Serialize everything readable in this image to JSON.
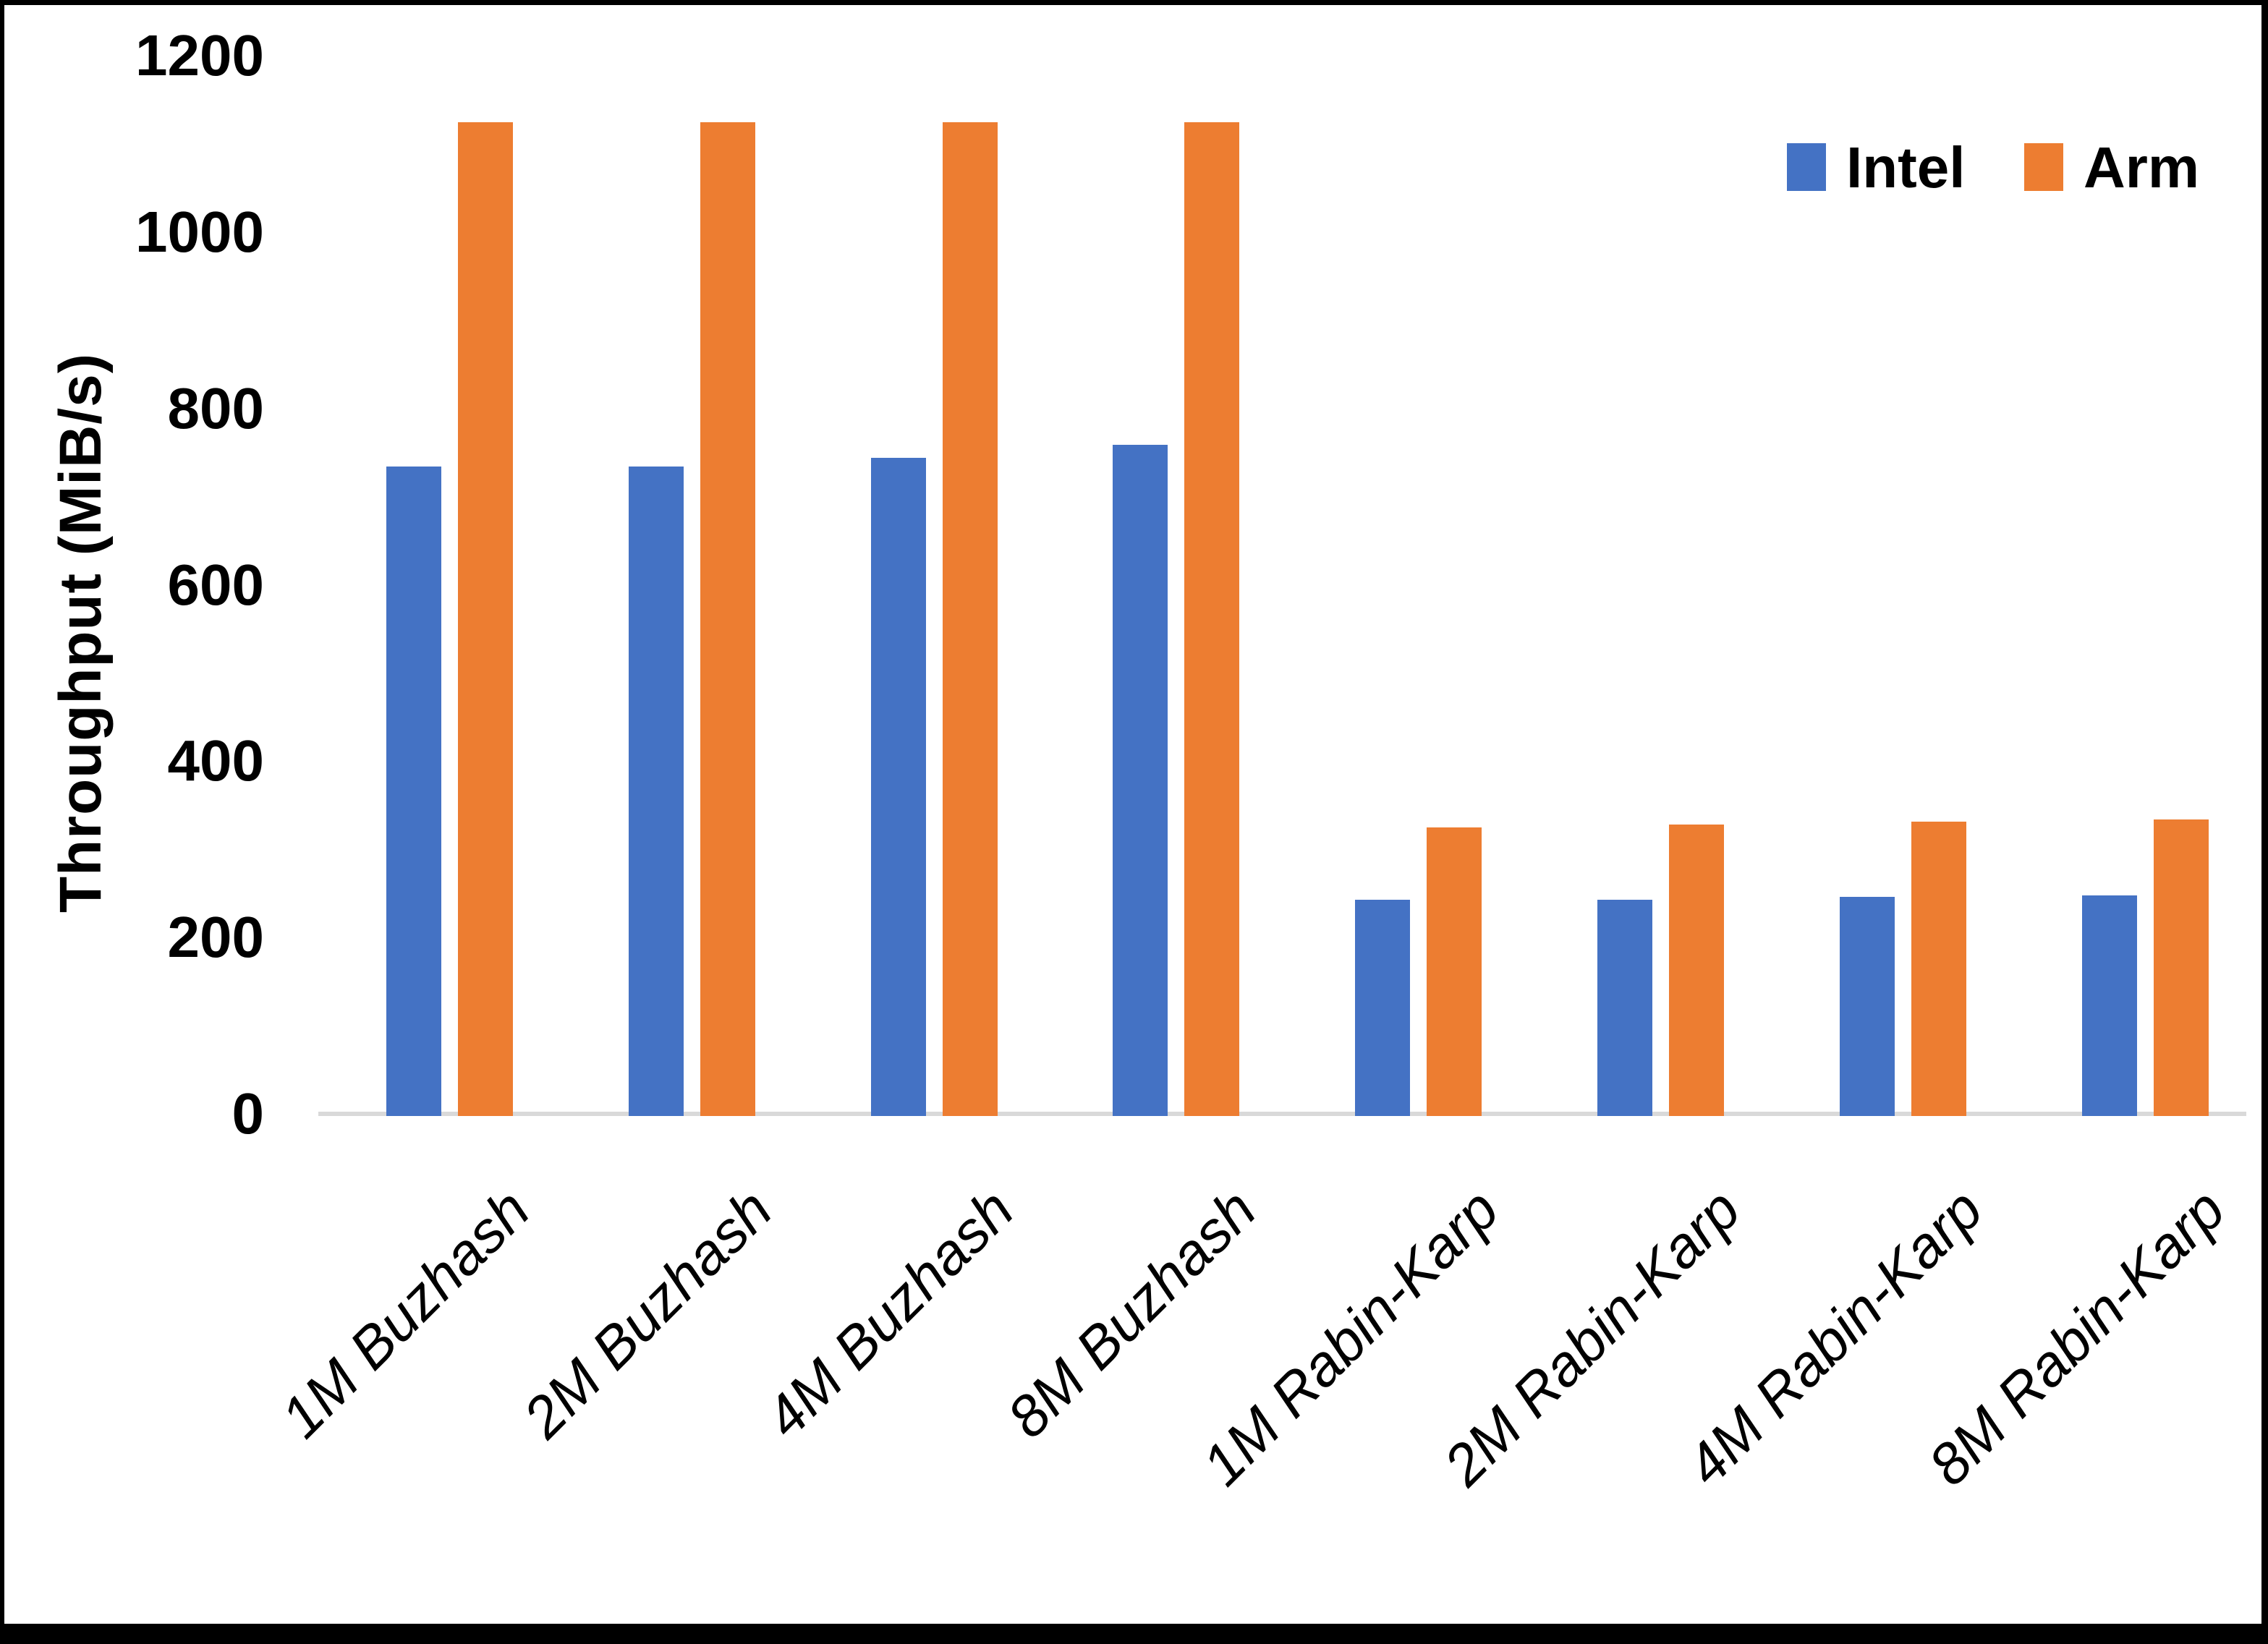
{
  "y_axis_title": "Throughput (MiB/s)",
  "legend": {
    "items": [
      {
        "label": "Intel",
        "color": "#4472C4"
      },
      {
        "label": "Arm",
        "color": "#ED7D31"
      }
    ]
  },
  "chart_data": {
    "type": "bar",
    "title": "",
    "xlabel": "",
    "ylabel": "Throughput (MiB/s)",
    "ylim": [
      0,
      1200
    ],
    "ytick_interval": 200,
    "ytick_labels": [
      "0",
      "200",
      "400",
      "600",
      "800",
      "1000",
      "1200"
    ],
    "grid": false,
    "legend_position": "top-right",
    "axis_line_color": "#d9d9d9",
    "categories": [
      "1M Buzhash",
      "2M Buzhash",
      "4M Buzhash",
      "8M Buzhash",
      "1M Rabin-Karp",
      "2M Rabin-Karp",
      "4M Rabin-Karp",
      "8M Rabin-Karp"
    ],
    "series": [
      {
        "name": "Intel",
        "color": "#4472C4",
        "values": [
          735,
          735,
          745,
          760,
          245,
          245,
          248,
          250
        ]
      },
      {
        "name": "Arm",
        "color": "#ED7D31",
        "values": [
          1125,
          1125,
          1125,
          1125,
          327,
          330,
          333,
          336
        ]
      }
    ]
  }
}
